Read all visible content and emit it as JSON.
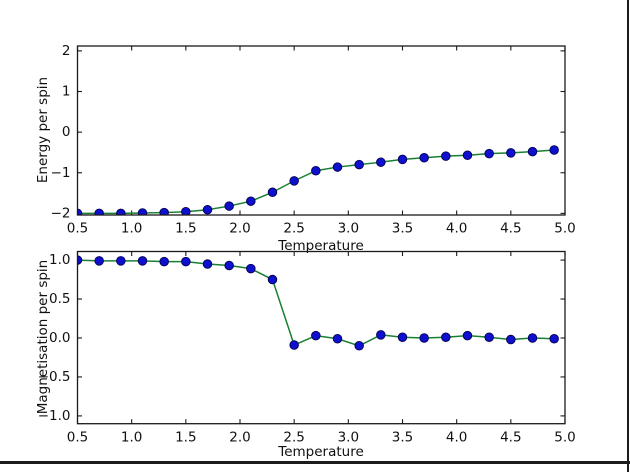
{
  "figure": {
    "background": "#ffffff",
    "spine_color": "#1a1a1a",
    "tick_label_color": "#111111",
    "frame_edge_color": "#1c1c1c"
  },
  "chart_data": [
    {
      "type": "line",
      "title": "",
      "xlabel": "Temperature",
      "ylabel": "Energy per spin",
      "marker": "o",
      "line_color": "#188030",
      "marker_color": "#0f0fd0",
      "marker_edge_color": "#000050",
      "grid": false,
      "legend": null,
      "xlim": [
        0.5,
        5.0
      ],
      "ylim": [
        -2.04,
        2.12
      ],
      "xticks": {
        "values": [
          0.5,
          1.0,
          1.5,
          2.0,
          2.5,
          3.0,
          3.5,
          4.0,
          4.5,
          5.0
        ],
        "labels": [
          "0.5",
          "1.0",
          "1.5",
          "2.0",
          "2.5",
          "3.0",
          "3.5",
          "4.0",
          "4.5",
          "5.0"
        ]
      },
      "yticks": {
        "values": [
          2,
          1,
          0,
          -1,
          -2
        ],
        "labels": [
          "2",
          "1",
          "0",
          "−1",
          "−2"
        ]
      },
      "x": [
        0.5,
        0.7,
        0.9,
        1.1,
        1.3,
        1.5,
        1.7,
        1.9,
        2.1,
        2.3,
        2.5,
        2.7,
        2.9,
        3.1,
        3.3,
        3.5,
        3.7,
        3.9,
        4.1,
        4.3,
        4.5,
        4.7,
        4.9
      ],
      "y": [
        -2.0,
        -2.0,
        -2.0,
        -1.99,
        -1.98,
        -1.96,
        -1.91,
        -1.82,
        -1.7,
        -1.48,
        -1.2,
        -0.95,
        -0.86,
        -0.8,
        -0.74,
        -0.67,
        -0.63,
        -0.59,
        -0.57,
        -0.53,
        -0.51,
        -0.48,
        -0.44
      ]
    },
    {
      "type": "line",
      "title": "",
      "xlabel": "Temperature",
      "ylabel": "Magnetisation per spin",
      "marker": "o",
      "line_color": "#188030",
      "marker_color": "#0f0fd0",
      "marker_edge_color": "#000050",
      "grid": false,
      "legend": null,
      "xlim": [
        0.5,
        5.0
      ],
      "ylim": [
        -1.1,
        1.11
      ],
      "xticks": {
        "values": [
          0.5,
          1.0,
          1.5,
          2.0,
          2.5,
          3.0,
          3.5,
          4.0,
          4.5,
          5.0
        ],
        "labels": [
          "0.5",
          "1.0",
          "1.5",
          "2.0",
          "2.5",
          "3.0",
          "3.5",
          "4.0",
          "4.5",
          "5.0"
        ]
      },
      "yticks": {
        "values": [
          1.0,
          0.5,
          0.0,
          -0.5,
          -1.0
        ],
        "labels": [
          "1.0",
          "0.5",
          "0.0",
          "−0.5",
          "−1.0"
        ]
      },
      "x": [
        0.5,
        0.7,
        0.9,
        1.1,
        1.3,
        1.5,
        1.7,
        1.9,
        2.1,
        2.3,
        2.5,
        2.7,
        2.9,
        3.1,
        3.3,
        3.5,
        3.7,
        3.9,
        4.1,
        4.3,
        4.5,
        4.7,
        4.9
      ],
      "y": [
        1.0,
        0.99,
        0.99,
        0.99,
        0.98,
        0.98,
        0.95,
        0.93,
        0.89,
        0.75,
        -0.09,
        0.03,
        -0.01,
        -0.1,
        0.04,
        0.01,
        0.0,
        0.01,
        0.03,
        0.01,
        -0.02,
        0.0,
        -0.01
      ]
    }
  ]
}
